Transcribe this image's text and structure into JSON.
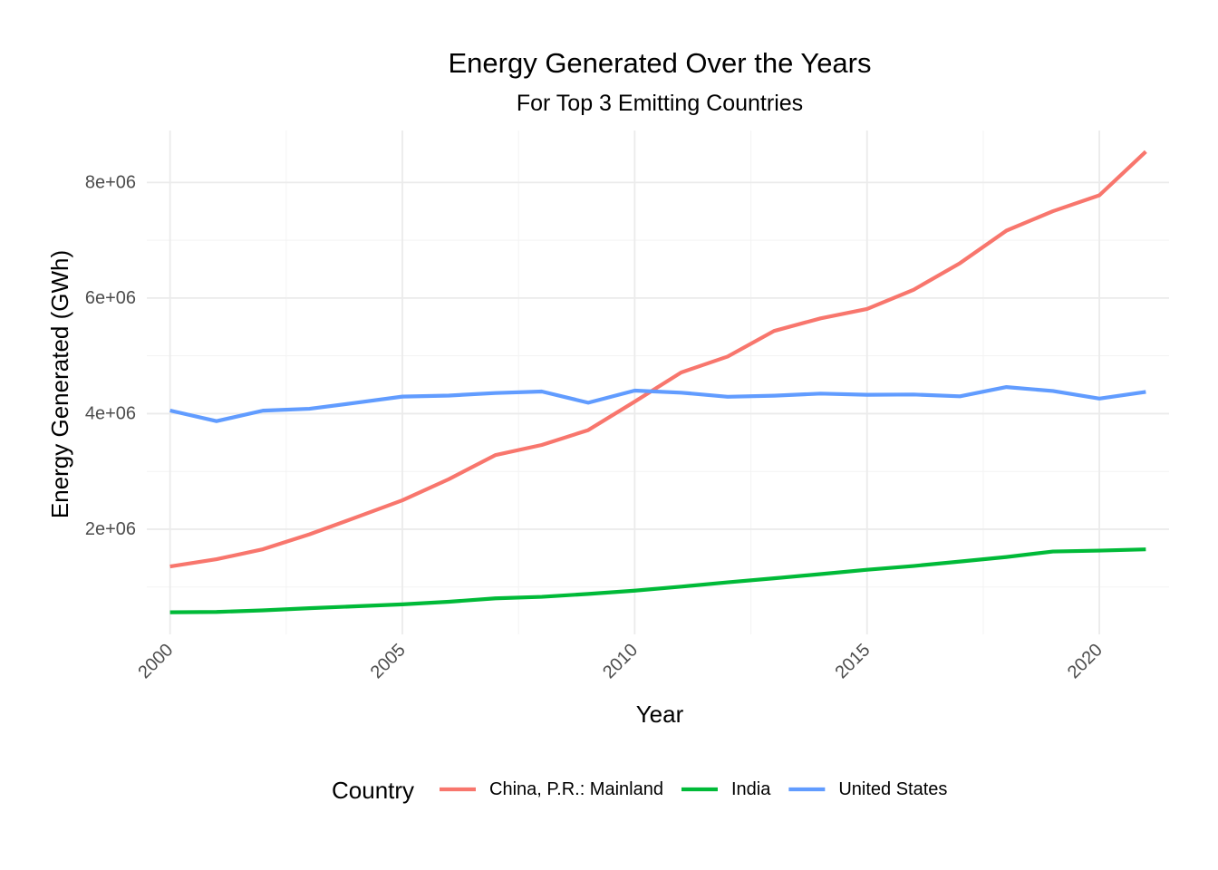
{
  "chart_data": {
    "type": "line",
    "title": "Energy Generated Over the Years",
    "subtitle": "For Top 3 Emitting Countries",
    "xlabel": "Year",
    "ylabel": "Energy Generated (GWh)",
    "xlim": [
      1999.5,
      2021.5
    ],
    "ylim": [
      180000,
      8900000
    ],
    "x_ticks": [
      2000,
      2005,
      2010,
      2015,
      2020
    ],
    "x_tick_labels": [
      "2000",
      "2005",
      "2010",
      "2015",
      "2020"
    ],
    "y_ticks": [
      2000000,
      4000000,
      6000000,
      8000000
    ],
    "y_tick_labels": [
      "2e+06",
      "4e+06",
      "6e+06",
      "8e+06"
    ],
    "grid": true,
    "legend": {
      "title": "Country",
      "position": "bottom"
    },
    "x": [
      2000,
      2001,
      2002,
      2003,
      2004,
      2005,
      2006,
      2007,
      2008,
      2009,
      2010,
      2011,
      2012,
      2013,
      2014,
      2015,
      2016,
      2017,
      2018,
      2019,
      2020,
      2021
    ],
    "series": [
      {
        "name": "China, P.R.: Mainland",
        "color": "#F8766D",
        "values": [
          1356000,
          1480000,
          1654000,
          1911000,
          2204000,
          2500000,
          2866000,
          3282000,
          3458000,
          3715000,
          4208000,
          4713000,
          4988000,
          5431000,
          5649000,
          5811000,
          6143000,
          6604000,
          7167000,
          7503000,
          7779000,
          8534000
        ]
      },
      {
        "name": "India",
        "color": "#00BA38",
        "values": [
          562000,
          568000,
          596000,
          633000,
          666000,
          699000,
          745000,
          803000,
          830000,
          880000,
          937000,
          1006000,
          1081000,
          1150000,
          1223000,
          1298000,
          1363000,
          1441000,
          1519000,
          1614000,
          1630000,
          1651000
        ]
      },
      {
        "name": "United States",
        "color": "#619CFF",
        "values": [
          4054000,
          3870000,
          4052000,
          4084000,
          4188000,
          4295000,
          4313000,
          4357000,
          4383000,
          4189000,
          4399000,
          4363000,
          4292000,
          4311000,
          4347000,
          4326000,
          4331000,
          4300000,
          4460000,
          4392000,
          4261000,
          4376000
        ]
      }
    ]
  }
}
